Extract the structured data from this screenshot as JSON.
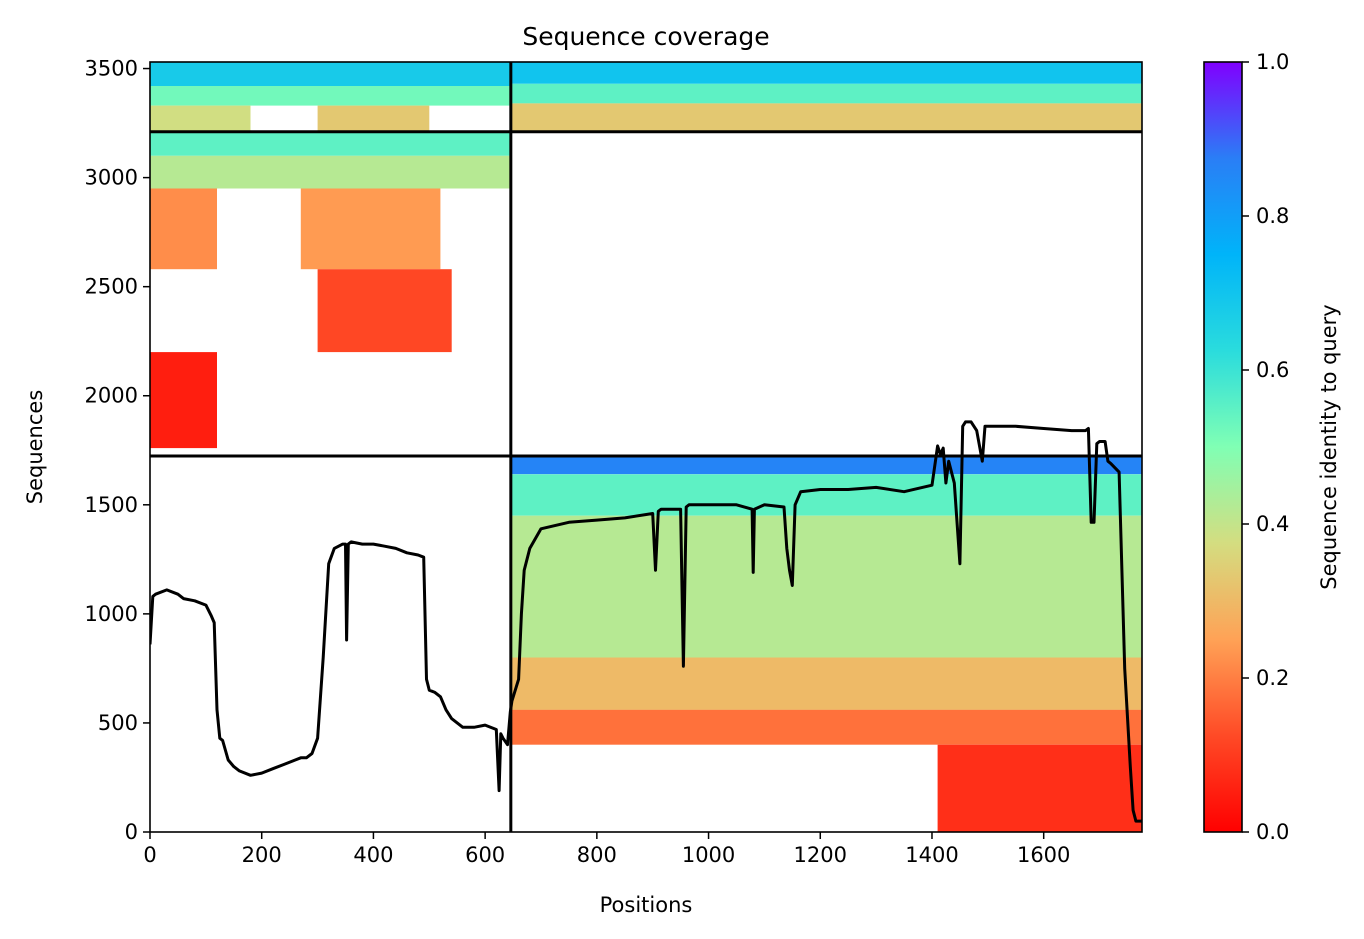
{
  "chart_data": {
    "type": "heatmap",
    "title": "Sequence coverage",
    "xlabel": "Positions",
    "ylabel": "Sequences",
    "xlim": [
      0,
      1776
    ],
    "ylim": [
      0,
      3530
    ],
    "xticks": [
      0,
      200,
      400,
      600,
      800,
      1000,
      1200,
      1400,
      1600
    ],
    "yticks": [
      0,
      500,
      1000,
      1500,
      2000,
      2500,
      3000,
      3500
    ],
    "grid": false,
    "chain_boundary_x": 646,
    "block_boundaries_y": [
      1724,
      3210
    ],
    "colorbar": {
      "label": "Sequence identity to query",
      "range": [
        0,
        1
      ],
      "ticks": [
        0.0,
        0.2,
        0.4,
        0.6,
        0.8,
        1.0
      ],
      "tick_labels": [
        "0.0",
        "0.2",
        "0.4",
        "0.6",
        "0.8",
        "1.0"
      ],
      "colormap": "rainbow_r",
      "colormap_stops": [
        {
          "t": 0.0,
          "color": "#ff0000"
        },
        {
          "t": 0.125,
          "color": "#ff4a26"
        },
        {
          "t": 0.25,
          "color": "#ffa256"
        },
        {
          "t": 0.375,
          "color": "#d4dd80"
        },
        {
          "t": 0.5,
          "color": "#80ffb4"
        },
        {
          "t": 0.625,
          "color": "#2adcdd"
        },
        {
          "t": 0.75,
          "color": "#00b4f9"
        },
        {
          "t": 0.875,
          "color": "#2a7ef6"
        },
        {
          "t": 1.0,
          "color": "#8000ff"
        }
      ]
    },
    "coverage_bands": [
      {
        "x": [
          0,
          646
        ],
        "y": [
          3420,
          3530
        ],
        "identity": 0.68
      },
      {
        "x": [
          0,
          646
        ],
        "y": [
          3330,
          3420
        ],
        "identity": 0.52
      },
      {
        "x": [
          0,
          180
        ],
        "y": [
          3215,
          3330
        ],
        "identity": 0.38
      },
      {
        "x": [
          300,
          500
        ],
        "y": [
          3215,
          3330
        ],
        "identity": 0.33
      },
      {
        "x": [
          646,
          1776
        ],
        "y": [
          3430,
          3530
        ],
        "identity": 0.7
      },
      {
        "x": [
          646,
          1776
        ],
        "y": [
          3340,
          3430
        ],
        "identity": 0.55
      },
      {
        "x": [
          646,
          1776
        ],
        "y": [
          3215,
          3340
        ],
        "identity": 0.33
      },
      {
        "x": [
          0,
          646
        ],
        "y": [
          3100,
          3210
        ],
        "identity": 0.55
      },
      {
        "x": [
          0,
          646
        ],
        "y": [
          2950,
          3100
        ],
        "identity": 0.42
      },
      {
        "x": [
          0,
          120
        ],
        "y": [
          2580,
          2950
        ],
        "identity": 0.22
      },
      {
        "x": [
          270,
          520
        ],
        "y": [
          2580,
          2950
        ],
        "identity": 0.24
      },
      {
        "x": [
          300,
          540
        ],
        "y": [
          2200,
          2580
        ],
        "identity": 0.12
      },
      {
        "x": [
          0,
          120
        ],
        "y": [
          1760,
          2200
        ],
        "identity": 0.05
      },
      {
        "x": [
          646,
          1776
        ],
        "y": [
          1640,
          1724
        ],
        "identity": 0.86
      },
      {
        "x": [
          646,
          1776
        ],
        "y": [
          1450,
          1640
        ],
        "identity": 0.55
      },
      {
        "x": [
          646,
          1776
        ],
        "y": [
          800,
          1450
        ],
        "identity": 0.42
      },
      {
        "x": [
          646,
          1776
        ],
        "y": [
          560,
          800
        ],
        "identity": 0.3
      },
      {
        "x": [
          646,
          1776
        ],
        "y": [
          400,
          560
        ],
        "identity": 0.18
      },
      {
        "x": [
          1410,
          1776
        ],
        "y": [
          0,
          400
        ],
        "identity": 0.08
      }
    ],
    "coverage_line": {
      "x": [
        0,
        5,
        10,
        30,
        50,
        60,
        80,
        100,
        110,
        115,
        120,
        125,
        130,
        140,
        150,
        160,
        180,
        200,
        220,
        240,
        260,
        270,
        280,
        290,
        300,
        310,
        320,
        330,
        345,
        350,
        352,
        355,
        360,
        380,
        400,
        420,
        440,
        460,
        480,
        490,
        495,
        500,
        510,
        520,
        530,
        540,
        550,
        560,
        580,
        600,
        620,
        625,
        628,
        632,
        640,
        645,
        648,
        660,
        665,
        670,
        680,
        700,
        750,
        800,
        850,
        900,
        905,
        910,
        915,
        950,
        955,
        960,
        965,
        1000,
        1050,
        1078,
        1080,
        1082,
        1100,
        1135,
        1140,
        1145,
        1150,
        1155,
        1165,
        1200,
        1250,
        1300,
        1350,
        1400,
        1410,
        1415,
        1420,
        1425,
        1430,
        1440,
        1450,
        1455,
        1460,
        1465,
        1470,
        1480,
        1490,
        1495,
        1500,
        1550,
        1600,
        1650,
        1675,
        1680,
        1685,
        1690,
        1695,
        1700,
        1710,
        1715,
        1720,
        1735,
        1745,
        1755,
        1760,
        1765,
        1776
      ],
      "y": [
        860,
        1080,
        1090,
        1110,
        1090,
        1070,
        1060,
        1040,
        990,
        960,
        560,
        430,
        420,
        330,
        300,
        280,
        260,
        270,
        290,
        310,
        330,
        340,
        340,
        360,
        430,
        800,
        1230,
        1300,
        1320,
        1320,
        880,
        1320,
        1330,
        1320,
        1320,
        1310,
        1300,
        1280,
        1270,
        1260,
        700,
        650,
        640,
        620,
        560,
        520,
        500,
        480,
        480,
        490,
        470,
        190,
        450,
        430,
        400,
        550,
        600,
        700,
        1000,
        1200,
        1300,
        1390,
        1420,
        1430,
        1440,
        1460,
        1200,
        1470,
        1480,
        1480,
        760,
        1490,
        1500,
        1500,
        1500,
        1480,
        1190,
        1480,
        1500,
        1490,
        1300,
        1200,
        1130,
        1500,
        1560,
        1570,
        1570,
        1580,
        1560,
        1590,
        1770,
        1730,
        1760,
        1600,
        1700,
        1600,
        1230,
        1860,
        1880,
        1880,
        1880,
        1840,
        1700,
        1860,
        1860,
        1860,
        1850,
        1840,
        1840,
        1850,
        1420,
        1420,
        1780,
        1790,
        1790,
        1700,
        1690,
        1650,
        750,
        300,
        100,
        50,
        50
      ]
    }
  }
}
